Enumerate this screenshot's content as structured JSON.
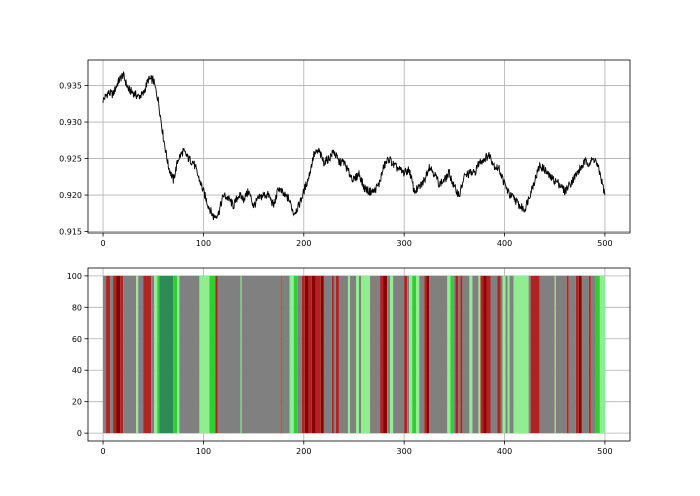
{
  "chart_data": [
    {
      "type": "line",
      "title": "",
      "xlabel": "",
      "ylabel": "",
      "xlim": [
        -15,
        525
      ],
      "ylim": [
        0.9148,
        0.9385
      ],
      "xticks": [
        0,
        100,
        200,
        300,
        400,
        500
      ],
      "yticks": [
        0.915,
        0.92,
        0.925,
        0.93,
        0.935
      ],
      "ytick_labels": [
        "0.915",
        "0.920",
        "0.925",
        "0.930",
        "0.935"
      ],
      "grid": true,
      "line_color": "#000000",
      "series": [
        {
          "x": [
            0,
            5,
            10,
            15,
            20,
            25,
            30,
            35,
            40,
            45,
            50,
            55,
            60,
            65,
            70,
            75,
            80,
            85,
            90,
            95,
            100,
            105,
            110,
            115,
            120,
            125,
            130,
            135,
            140,
            145,
            150,
            155,
            160,
            165,
            170,
            175,
            180,
            185,
            190,
            195,
            200,
            205,
            210,
            215,
            220,
            225,
            230,
            235,
            240,
            245,
            250,
            255,
            260,
            265,
            270,
            275,
            280,
            285,
            290,
            295,
            300,
            305,
            310,
            315,
            320,
            325,
            330,
            335,
            340,
            345,
            350,
            355,
            360,
            365,
            370,
            375,
            380,
            385,
            390,
            395,
            400,
            405,
            410,
            415,
            420,
            425,
            430,
            435,
            440,
            445,
            450,
            455,
            460,
            465,
            470,
            475,
            480,
            485,
            490,
            495,
            500
          ],
          "y": [
            0.933,
            0.934,
            0.9338,
            0.9355,
            0.9365,
            0.9345,
            0.934,
            0.9335,
            0.9338,
            0.9358,
            0.9358,
            0.933,
            0.928,
            0.924,
            0.922,
            0.925,
            0.926,
            0.925,
            0.9245,
            0.9225,
            0.9205,
            0.9185,
            0.917,
            0.9175,
            0.92,
            0.9195,
            0.9185,
            0.92,
            0.9195,
            0.9205,
            0.9185,
            0.9195,
            0.92,
            0.92,
            0.9185,
            0.921,
            0.92,
            0.9195,
            0.9175,
            0.9185,
            0.9205,
            0.9225,
            0.9255,
            0.926,
            0.9245,
            0.925,
            0.926,
            0.9245,
            0.9245,
            0.923,
            0.922,
            0.923,
            0.921,
            0.9205,
            0.9205,
            0.9215,
            0.924,
            0.925,
            0.924,
            0.9235,
            0.923,
            0.9235,
            0.9205,
            0.921,
            0.922,
            0.924,
            0.923,
            0.9215,
            0.922,
            0.923,
            0.921,
            0.92,
            0.9225,
            0.923,
            0.923,
            0.9245,
            0.925,
            0.9255,
            0.924,
            0.9235,
            0.9215,
            0.92,
            0.9195,
            0.9185,
            0.918,
            0.92,
            0.922,
            0.924,
            0.9235,
            0.9225,
            0.922,
            0.9215,
            0.9205,
            0.9215,
            0.9225,
            0.9235,
            0.9245,
            0.9245,
            0.925,
            0.923,
            0.92
          ]
        }
      ]
    },
    {
      "type": "bar",
      "title": "",
      "xlabel": "",
      "ylabel": "",
      "xlim": [
        -15,
        525
      ],
      "ylim": [
        -5,
        105
      ],
      "xticks": [
        0,
        100,
        200,
        300,
        400,
        500
      ],
      "yticks": [
        0,
        20,
        40,
        60,
        80,
        100
      ],
      "grid": true,
      "bar_height": 100,
      "regime_colors": {
        "gray": "#808080",
        "lightgreen": "#90ee90",
        "green": "#32cd32",
        "seagreen": "#2e8b57",
        "red": "#b22222",
        "darkred": "#8b0000"
      },
      "regimes": [
        {
          "start": 0,
          "end": 3,
          "color": "gray"
        },
        {
          "start": 3,
          "end": 7,
          "color": "red"
        },
        {
          "start": 7,
          "end": 10,
          "color": "gray"
        },
        {
          "start": 10,
          "end": 13,
          "color": "red"
        },
        {
          "start": 13,
          "end": 17,
          "color": "darkred"
        },
        {
          "start": 17,
          "end": 20,
          "color": "red"
        },
        {
          "start": 20,
          "end": 33,
          "color": "gray"
        },
        {
          "start": 33,
          "end": 35,
          "color": "lightgreen"
        },
        {
          "start": 35,
          "end": 40,
          "color": "gray"
        },
        {
          "start": 40,
          "end": 48,
          "color": "red"
        },
        {
          "start": 48,
          "end": 51,
          "color": "gray"
        },
        {
          "start": 51,
          "end": 54,
          "color": "lightgreen"
        },
        {
          "start": 54,
          "end": 56,
          "color": "green"
        },
        {
          "start": 56,
          "end": 70,
          "color": "seagreen"
        },
        {
          "start": 70,
          "end": 74,
          "color": "green"
        },
        {
          "start": 74,
          "end": 76,
          "color": "lightgreen"
        },
        {
          "start": 76,
          "end": 96,
          "color": "gray"
        },
        {
          "start": 96,
          "end": 106,
          "color": "lightgreen"
        },
        {
          "start": 106,
          "end": 112,
          "color": "green"
        },
        {
          "start": 112,
          "end": 114,
          "color": "red"
        },
        {
          "start": 114,
          "end": 137,
          "color": "gray"
        },
        {
          "start": 137,
          "end": 138,
          "color": "lightgreen"
        },
        {
          "start": 138,
          "end": 177,
          "color": "gray"
        },
        {
          "start": 177,
          "end": 178,
          "color": "red"
        },
        {
          "start": 178,
          "end": 186,
          "color": "gray"
        },
        {
          "start": 186,
          "end": 190,
          "color": "lightgreen"
        },
        {
          "start": 190,
          "end": 194,
          "color": "green"
        },
        {
          "start": 194,
          "end": 198,
          "color": "gray"
        },
        {
          "start": 198,
          "end": 201,
          "color": "red"
        },
        {
          "start": 201,
          "end": 205,
          "color": "darkred"
        },
        {
          "start": 205,
          "end": 208,
          "color": "red"
        },
        {
          "start": 208,
          "end": 212,
          "color": "darkred"
        },
        {
          "start": 212,
          "end": 217,
          "color": "red"
        },
        {
          "start": 217,
          "end": 220,
          "color": "darkred"
        },
        {
          "start": 220,
          "end": 228,
          "color": "gray"
        },
        {
          "start": 228,
          "end": 230,
          "color": "red"
        },
        {
          "start": 230,
          "end": 232,
          "color": "gray"
        },
        {
          "start": 232,
          "end": 235,
          "color": "red"
        },
        {
          "start": 235,
          "end": 244,
          "color": "gray"
        },
        {
          "start": 244,
          "end": 246,
          "color": "lightgreen"
        },
        {
          "start": 246,
          "end": 252,
          "color": "gray"
        },
        {
          "start": 252,
          "end": 255,
          "color": "lightgreen"
        },
        {
          "start": 255,
          "end": 257,
          "color": "gray"
        },
        {
          "start": 257,
          "end": 266,
          "color": "lightgreen"
        },
        {
          "start": 266,
          "end": 276,
          "color": "gray"
        },
        {
          "start": 276,
          "end": 279,
          "color": "red"
        },
        {
          "start": 279,
          "end": 283,
          "color": "darkred"
        },
        {
          "start": 283,
          "end": 286,
          "color": "gray"
        },
        {
          "start": 286,
          "end": 289,
          "color": "lightgreen"
        },
        {
          "start": 289,
          "end": 300,
          "color": "gray"
        },
        {
          "start": 300,
          "end": 303,
          "color": "red"
        },
        {
          "start": 303,
          "end": 305,
          "color": "gray"
        },
        {
          "start": 305,
          "end": 308,
          "color": "lightgreen"
        },
        {
          "start": 308,
          "end": 312,
          "color": "green"
        },
        {
          "start": 312,
          "end": 315,
          "color": "lightgreen"
        },
        {
          "start": 315,
          "end": 320,
          "color": "gray"
        },
        {
          "start": 320,
          "end": 322,
          "color": "red"
        },
        {
          "start": 322,
          "end": 325,
          "color": "darkred"
        },
        {
          "start": 325,
          "end": 343,
          "color": "gray"
        },
        {
          "start": 343,
          "end": 346,
          "color": "lightgreen"
        },
        {
          "start": 346,
          "end": 349,
          "color": "green"
        },
        {
          "start": 349,
          "end": 351,
          "color": "gray"
        },
        {
          "start": 351,
          "end": 354,
          "color": "red"
        },
        {
          "start": 354,
          "end": 356,
          "color": "gray"
        },
        {
          "start": 356,
          "end": 358,
          "color": "red"
        },
        {
          "start": 358,
          "end": 365,
          "color": "gray"
        },
        {
          "start": 365,
          "end": 368,
          "color": "lightgreen"
        },
        {
          "start": 368,
          "end": 374,
          "color": "gray"
        },
        {
          "start": 374,
          "end": 376,
          "color": "lightgreen"
        },
        {
          "start": 376,
          "end": 379,
          "color": "red"
        },
        {
          "start": 379,
          "end": 382,
          "color": "darkred"
        },
        {
          "start": 382,
          "end": 386,
          "color": "red"
        },
        {
          "start": 386,
          "end": 393,
          "color": "gray"
        },
        {
          "start": 393,
          "end": 396,
          "color": "red"
        },
        {
          "start": 396,
          "end": 398,
          "color": "gray"
        },
        {
          "start": 398,
          "end": 401,
          "color": "lightgreen"
        },
        {
          "start": 401,
          "end": 403,
          "color": "gray"
        },
        {
          "start": 403,
          "end": 405,
          "color": "lightgreen"
        },
        {
          "start": 405,
          "end": 409,
          "color": "gray"
        },
        {
          "start": 409,
          "end": 424,
          "color": "lightgreen"
        },
        {
          "start": 424,
          "end": 426,
          "color": "gray"
        },
        {
          "start": 426,
          "end": 435,
          "color": "red"
        },
        {
          "start": 435,
          "end": 450,
          "color": "gray"
        },
        {
          "start": 450,
          "end": 451,
          "color": "lightgreen"
        },
        {
          "start": 451,
          "end": 462,
          "color": "gray"
        },
        {
          "start": 462,
          "end": 464,
          "color": "red"
        },
        {
          "start": 464,
          "end": 471,
          "color": "gray"
        },
        {
          "start": 471,
          "end": 474,
          "color": "red"
        },
        {
          "start": 474,
          "end": 477,
          "color": "darkred"
        },
        {
          "start": 477,
          "end": 484,
          "color": "gray"
        },
        {
          "start": 484,
          "end": 486,
          "color": "red"
        },
        {
          "start": 486,
          "end": 491,
          "color": "gray"
        },
        {
          "start": 491,
          "end": 495,
          "color": "green"
        },
        {
          "start": 495,
          "end": 500,
          "color": "lightgreen"
        }
      ]
    }
  ]
}
